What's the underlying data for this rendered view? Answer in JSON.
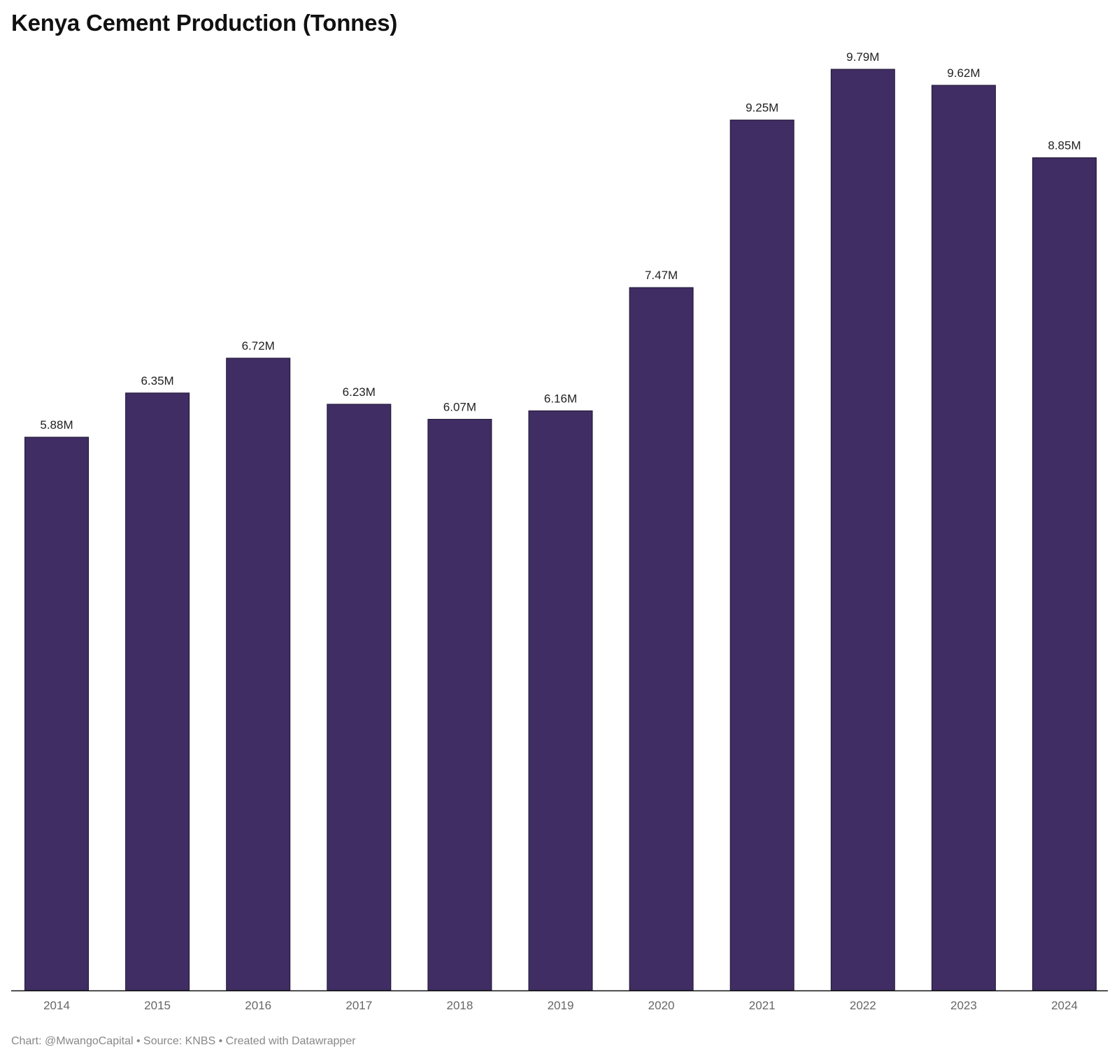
{
  "chart_data": {
    "type": "bar",
    "title": "Kenya Cement Production (Tonnes)",
    "xlabel": "",
    "ylabel": "",
    "categories": [
      "2014",
      "2015",
      "2016",
      "2017",
      "2018",
      "2019",
      "2020",
      "2021",
      "2022",
      "2023",
      "2024"
    ],
    "values": [
      5.88,
      6.35,
      6.72,
      6.23,
      6.07,
      6.16,
      7.47,
      9.25,
      9.79,
      9.62,
      8.85
    ],
    "value_labels": [
      "5.88M",
      "6.35M",
      "6.72M",
      "6.23M",
      "6.07M",
      "6.16M",
      "7.47M",
      "9.25M",
      "9.79M",
      "9.62M",
      "8.85M"
    ],
    "ylim": [
      0,
      9.79
    ],
    "grid": false,
    "legend": "none",
    "bar_color": "#3f2d63",
    "bar_outline_color": "#1e1433",
    "axis_color": "#111111"
  },
  "footer": {
    "credit": "Chart: @MwangoCapital • Source: KNBS • Created with Datawrapper"
  }
}
